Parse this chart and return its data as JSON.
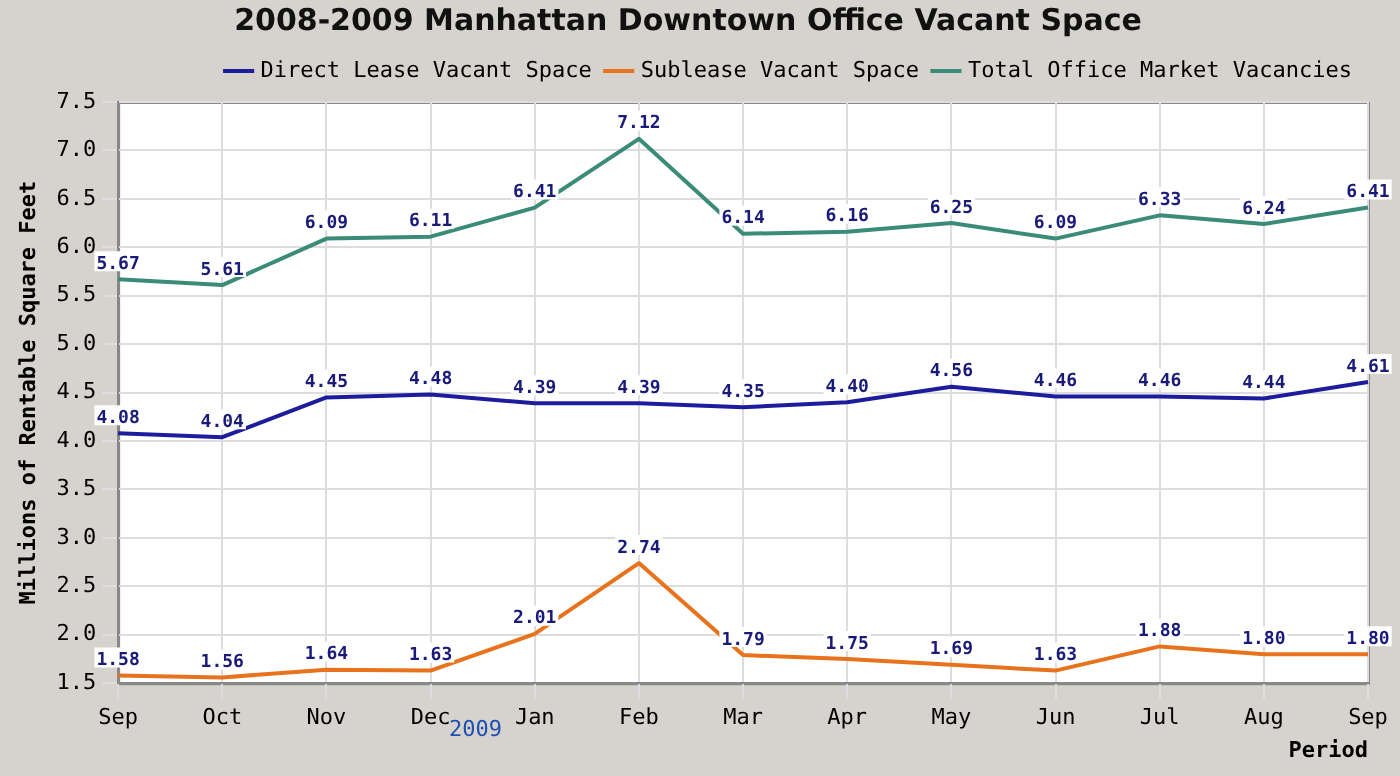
{
  "chart_data": {
    "type": "line",
    "title": "2008-2009 Manhattan Downtown Office Vacant Space",
    "xlabel": "Period",
    "ylabel": "Millions of Rentable Square Feet",
    "categories": [
      "Sep",
      "Oct",
      "Nov",
      "Dec",
      "Jan",
      "Feb",
      "Mar",
      "Apr",
      "May",
      "Jun",
      "Jul",
      "Aug",
      "Sep"
    ],
    "series": [
      {
        "name": "Direct Lease Vacant Space",
        "color": "#1c1c9c",
        "values": [
          4.08,
          4.04,
          4.45,
          4.48,
          4.39,
          4.39,
          4.35,
          4.4,
          4.56,
          4.46,
          4.46,
          4.44,
          4.61
        ],
        "value_labels": [
          "4.08",
          "4.04",
          "4.45",
          "4.48",
          "4.39",
          "4.39",
          "4.35",
          "4.40",
          "4.56",
          "4.46",
          "4.46",
          "4.44",
          "4.61"
        ]
      },
      {
        "name": "Sublease Vacant Space",
        "color": "#e8731c",
        "values": [
          1.58,
          1.56,
          1.64,
          1.63,
          2.01,
          2.74,
          1.79,
          1.75,
          1.69,
          1.63,
          1.88,
          1.8,
          1.8
        ],
        "value_labels": [
          "1.58",
          "1.56",
          "1.64",
          "1.63",
          "2.01",
          "2.74",
          "1.79",
          "1.75",
          "1.69",
          "1.63",
          "1.88",
          "1.80",
          "1.80"
        ]
      },
      {
        "name": "Total Office Market Vacancies",
        "color": "#3a8c78",
        "values": [
          5.67,
          5.61,
          6.09,
          6.11,
          6.41,
          7.12,
          6.14,
          6.16,
          6.25,
          6.09,
          6.33,
          6.24,
          6.41
        ],
        "value_labels": [
          "5.67",
          "5.61",
          "6.09",
          "6.11",
          "6.41",
          "7.12",
          "6.14",
          "6.16",
          "6.25",
          "6.09",
          "6.33",
          "6.24",
          "6.41"
        ]
      }
    ],
    "ylim": [
      1.5,
      7.5
    ],
    "yticks": [
      1.5,
      {
        "value": 2,
        "label": "2.0"
      },
      2.5,
      {
        "value": 3,
        "label": "3.0"
      },
      3.5,
      {
        "value": 4,
        "label": "4.0"
      },
      4.5,
      {
        "value": 5,
        "label": "5.0"
      },
      5.5,
      {
        "value": 6,
        "label": "6.0"
      },
      6.5,
      {
        "value": 7,
        "label": "7.0"
      },
      7.5
    ],
    "grid": true,
    "legend": "top right",
    "marker": "none",
    "line_style": "solid",
    "annotations": [
      "2009"
    ]
  }
}
